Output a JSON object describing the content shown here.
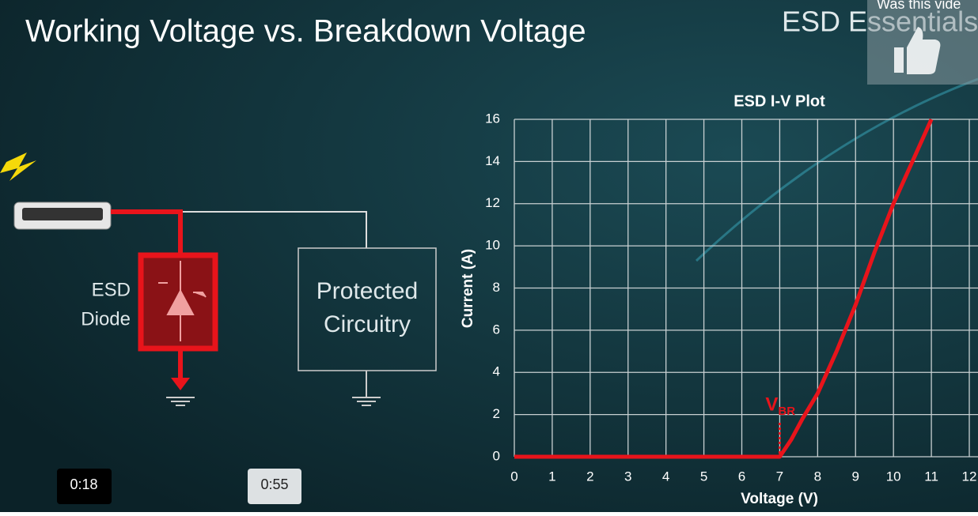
{
  "slide": {
    "title": "Working Voltage vs. Breakdown Voltage",
    "brand": "ESD Essentials",
    "feedback": "Was this vide"
  },
  "diagram": {
    "diode_label": [
      "ESD",
      "Diode"
    ],
    "circuit_label": [
      "Protected",
      "Circuitry"
    ]
  },
  "chart_data": {
    "type": "line",
    "title": "ESD I-V Plot",
    "x_label": "Voltage (V)",
    "y_label": "Current (A)",
    "x": [
      0,
      6.9,
      7,
      7.3,
      7.6,
      8,
      8.5,
      9,
      9.5,
      10,
      10.5,
      11
    ],
    "series": [
      {
        "name": "I-V",
        "color": "#e8141b",
        "values": [
          0,
          0,
          0,
          0.8,
          1.8,
          3,
          5,
          7.2,
          9.7,
          12,
          14,
          16
        ]
      }
    ],
    "annotation": {
      "text": "V",
      "sub": "BR",
      "x": 7
    },
    "xlim": [
      0,
      12
    ],
    "xticks": [
      0,
      1,
      2,
      3,
      4,
      5,
      6,
      7,
      8,
      9,
      10,
      11,
      12
    ],
    "ylim": [
      0,
      16
    ],
    "yticks": [
      0,
      2,
      4,
      6,
      8,
      10,
      12,
      14,
      16
    ],
    "grid": true
  },
  "player": {
    "current_time": "0:18",
    "duration": "0:55"
  }
}
